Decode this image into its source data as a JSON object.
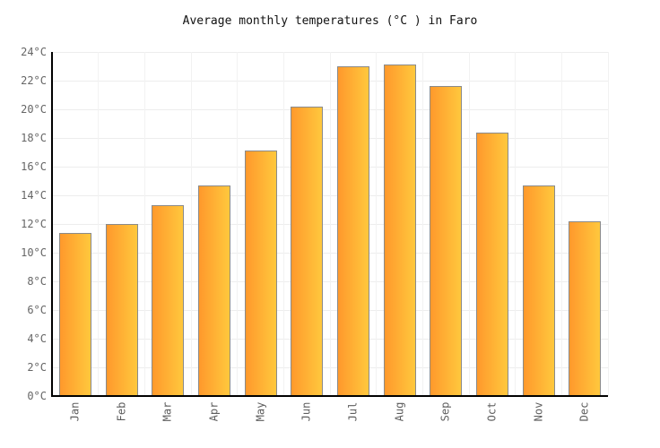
{
  "chart_data": {
    "type": "bar",
    "title": "Average monthly temperatures (°C ) in Faro",
    "categories": [
      "Jan",
      "Feb",
      "Mar",
      "Apr",
      "May",
      "Jun",
      "Jul",
      "Aug",
      "Sep",
      "Oct",
      "Nov",
      "Dec"
    ],
    "values": [
      11.4,
      12.0,
      13.3,
      14.7,
      17.1,
      20.2,
      23.0,
      23.1,
      21.6,
      18.4,
      14.7,
      12.2
    ],
    "unit": "°C",
    "xlabel": "",
    "ylabel": "",
    "ylim": [
      0,
      24
    ],
    "ytick_step": 2,
    "ytick_labels": [
      "0°C",
      "2°C",
      "4°C",
      "6°C",
      "8°C",
      "10°C",
      "12°C",
      "14°C",
      "16°C",
      "18°C",
      "20°C",
      "22°C",
      "24°C"
    ],
    "grid": true,
    "legend": "none",
    "colors": {
      "bar_gradient_start": "#FF992C",
      "bar_gradient_end": "#FFC83D",
      "bar_border": "#8A8A8A",
      "axis_line": "#000000",
      "grid_line_horizontal": "#EDEDED",
      "grid_line_vertical": "#F2F2F2",
      "tick_label": "#666666",
      "title_text": "#111111",
      "background": "#FFFFFF"
    }
  }
}
